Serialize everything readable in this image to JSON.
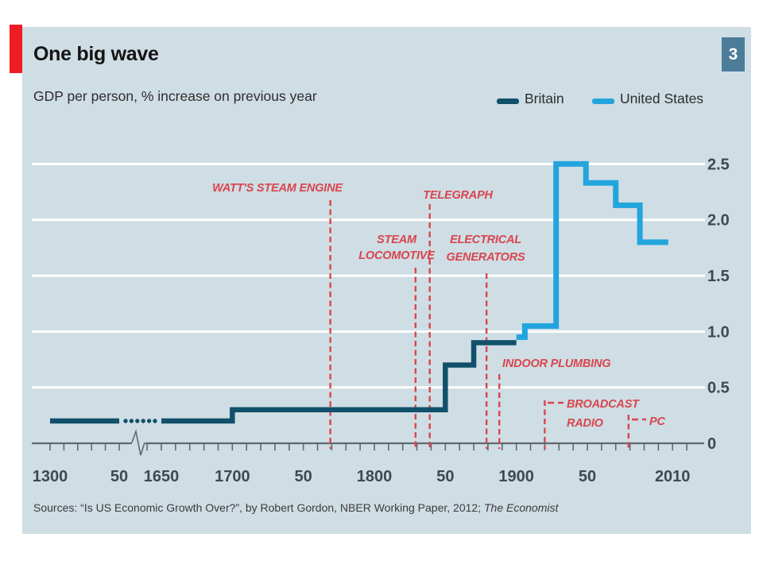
{
  "page": {
    "badge_label": "3"
  },
  "header": {
    "title": "One big wave",
    "subtitle": "GDP per person, % increase on previous year"
  },
  "footer": {
    "source_prefix": "Sources: “Is US Economic Growth Over?”, by Robert Gordon, NBER Working Paper, 2012; ",
    "source_italic": "The Economist"
  },
  "colors": {
    "panel_bg": "#cfdde4",
    "brand_red": "#ee1c24",
    "annotation_red": "#d9454e",
    "badge_blue": "#4b7d99",
    "britain_line": "#11506a",
    "united_states_line": "#22a5dd",
    "gridline": "#ffffff",
    "axis": "#5f686e",
    "tick_label": "#3f4950"
  },
  "chart_data": {
    "type": "line",
    "step": true,
    "title": "One big wave",
    "subtitle": "GDP per person, % increase on previous year",
    "xlabel": "",
    "ylabel": "GDP per person, % increase on previous year",
    "ylim": [
      0,
      2.75
    ],
    "grid": true,
    "legend_position": "top-right",
    "yticks": [
      {
        "value": 0,
        "label": "0"
      },
      {
        "value": 0.5,
        "label": "0.5"
      },
      {
        "value": 1,
        "label": "1.0"
      },
      {
        "value": 1.5,
        "label": "1.5"
      },
      {
        "value": 2,
        "label": "2.0"
      },
      {
        "value": 2.5,
        "label": "2.5"
      }
    ],
    "xticks": [
      {
        "year": 1300,
        "label": "1300"
      },
      {
        "year": 1350,
        "label": "50"
      },
      {
        "year": 1650,
        "label": "1650"
      },
      {
        "year": 1700,
        "label": "1700"
      },
      {
        "year": 1750,
        "label": "50"
      },
      {
        "year": 1800,
        "label": "1800"
      },
      {
        "year": 1850,
        "label": "50"
      },
      {
        "year": 1900,
        "label": "1900"
      },
      {
        "year": 1950,
        "label": "50"
      },
      {
        "year": 2010,
        "label": "2010"
      }
    ],
    "x_axis_break_years": [
      1350,
      1650
    ],
    "series": [
      {
        "name": "Britain",
        "color": "#11506a",
        "dotted_span": [
          1350,
          1650
        ],
        "points": [
          [
            1300,
            0.2
          ],
          [
            1700,
            0.2
          ],
          [
            1700,
            0.3
          ],
          [
            1850,
            0.3
          ],
          [
            1850,
            0.7
          ],
          [
            1870,
            0.7
          ],
          [
            1870,
            0.9
          ],
          [
            1900,
            0.9
          ]
        ]
      },
      {
        "name": "United States",
        "color": "#22a5dd",
        "points": [
          [
            1900,
            0.95
          ],
          [
            1906,
            0.95
          ],
          [
            1906,
            1.05
          ],
          [
            1928,
            1.05
          ],
          [
            1928,
            2.5
          ],
          [
            1949,
            2.5
          ],
          [
            1949,
            2.33
          ],
          [
            1970,
            2.33
          ],
          [
            1970,
            2.13
          ],
          [
            1987,
            2.13
          ],
          [
            1987,
            1.8
          ],
          [
            2007,
            1.8
          ]
        ]
      }
    ],
    "annotations": [
      {
        "year": 1769,
        "label_lines": [
          "WATT'S STEAM ENGINE"
        ]
      },
      {
        "year": 1829,
        "label_lines": [
          "STEAM",
          "LOCOMOTIVE"
        ]
      },
      {
        "year": 1839,
        "label_lines": [
          "TELEGRAPH"
        ]
      },
      {
        "year": 1879,
        "label_lines": [
          "ELECTRICAL",
          "GENERATORS"
        ]
      },
      {
        "year": 1888,
        "label_lines": [
          "INDOOR PLUMBING"
        ]
      },
      {
        "year": 1920,
        "label_lines": [
          "BROADCAST",
          "RADIO"
        ]
      },
      {
        "year": 1979,
        "label_lines": [
          "PC"
        ]
      }
    ]
  }
}
